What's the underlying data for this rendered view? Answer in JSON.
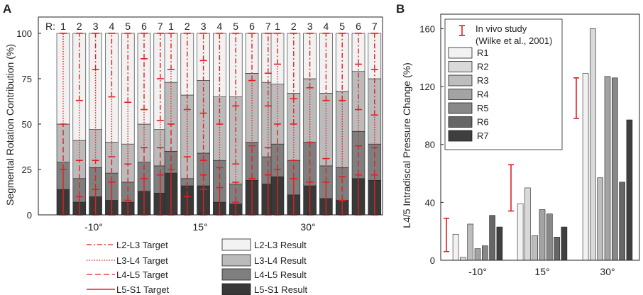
{
  "colors": {
    "target": "#e02020",
    "axis": "#222222",
    "grey_levels": [
      "#f2f2f2",
      "#d9d9d9",
      "#bdbdbd",
      "#a3a3a3",
      "#888888",
      "#666666",
      "#3f3f3f"
    ],
    "stack": [
      "#393939",
      "#7f7f7f",
      "#bbbbbb",
      "#f2f2f2"
    ]
  },
  "chart_data": [
    {
      "panel_label": "A",
      "type": "bar",
      "stacked": true,
      "ylabel": "Segmental Rotation Contribution (%)",
      "ylim": [
        0,
        100
      ],
      "yticks": [
        0,
        25,
        50,
        75,
        100
      ],
      "r_label": "R:",
      "run_labels": [
        "1",
        "2",
        "3",
        "4",
        "5",
        "6",
        "7"
      ],
      "groups": [
        "-10°",
        "15°",
        "30°"
      ],
      "segments": [
        "L5-S1",
        "L4-L5",
        "L3-L4",
        "L2-L3"
      ],
      "result_stacks": {
        "-10°": [
          [
            14,
            29,
            50,
            100
          ],
          [
            7,
            20,
            41,
            100
          ],
          [
            10,
            26,
            47,
            100
          ],
          [
            8,
            23,
            40,
            100
          ],
          [
            7,
            18,
            39,
            100
          ],
          [
            13,
            29,
            50,
            100
          ],
          [
            12,
            27,
            47,
            100
          ]
        ],
        "15°": [
          [
            23,
            35,
            73,
            100
          ],
          [
            16,
            20,
            66,
            100
          ],
          [
            16,
            34,
            74,
            100
          ],
          [
            7,
            30,
            65,
            100
          ],
          [
            6,
            17,
            65,
            100
          ],
          [
            19,
            40,
            78,
            100
          ],
          [
            17,
            32,
            73,
            100
          ]
        ],
        "30°": [
          [
            21,
            39,
            72,
            100
          ],
          [
            11,
            30,
            67,
            100
          ],
          [
            16,
            40,
            75,
            100
          ],
          [
            9,
            27,
            67,
            100
          ],
          [
            8,
            26,
            68,
            100
          ],
          [
            20,
            46,
            79,
            100
          ],
          [
            19,
            39,
            75,
            100
          ]
        ]
      },
      "target_markers": {
        "-10°": [
          [
            25,
            50
          ],
          [
            10,
            30,
            63
          ],
          [
            14,
            30,
            80
          ],
          [
            18,
            32,
            65
          ],
          [
            8,
            28,
            62
          ],
          [
            20,
            37,
            58,
            86
          ],
          [
            22,
            37,
            52,
            75
          ]
        ],
        "15°": [
          [
            25,
            50,
            80
          ],
          [
            10,
            32,
            58
          ],
          [
            14,
            22,
            30,
            56,
            85
          ],
          [
            15,
            26,
            50
          ],
          [
            7,
            18,
            28,
            60
          ],
          [
            20,
            38,
            74
          ],
          [
            22,
            37,
            60,
            78
          ]
        ],
        "30°": [
          [
            25,
            50,
            83
          ],
          [
            20,
            30,
            50,
            64
          ],
          [
            18,
            40,
            70
          ],
          [
            18,
            31,
            63
          ],
          [
            8,
            21,
            63
          ],
          [
            22,
            38,
            58,
            83
          ],
          [
            22,
            37,
            55,
            80
          ]
        ]
      },
      "legend_targets": [
        "L2-L3 Target",
        "L3-L4 Target",
        "L4-L5 Target",
        "L5-S1 Target"
      ],
      "legend_results": [
        "L2-L3 Result",
        "L3-L4 Result",
        "L4-L5 Result",
        "L5-S1 Result"
      ]
    },
    {
      "panel_label": "B",
      "type": "bar",
      "ylabel": "L4/5 Intradiscal Pressure Change (%)",
      "ylim": [
        0,
        170
      ],
      "yticks": [
        0,
        40,
        80,
        120,
        160
      ],
      "categories": [
        "-10°",
        "15°",
        "30°"
      ],
      "series": [
        {
          "name": "R1",
          "values": [
            18,
            39,
            129
          ]
        },
        {
          "name": "R2",
          "values": [
            2,
            50,
            160
          ]
        },
        {
          "name": "R3",
          "values": [
            25,
            17,
            57
          ]
        },
        {
          "name": "R4",
          "values": [
            8,
            35,
            127
          ]
        },
        {
          "name": "R5",
          "values": [
            10,
            32,
            126
          ]
        },
        {
          "name": "R6",
          "values": [
            31,
            16,
            54
          ]
        },
        {
          "name": "R7",
          "values": [
            23,
            23,
            97
          ]
        }
      ],
      "in_vivo": {
        "label": "In vivo study",
        "citation": "(Wilke et al., 2001)",
        "ranges": [
          [
            6,
            29
          ],
          [
            34,
            66
          ],
          [
            98,
            126
          ]
        ]
      }
    }
  ]
}
